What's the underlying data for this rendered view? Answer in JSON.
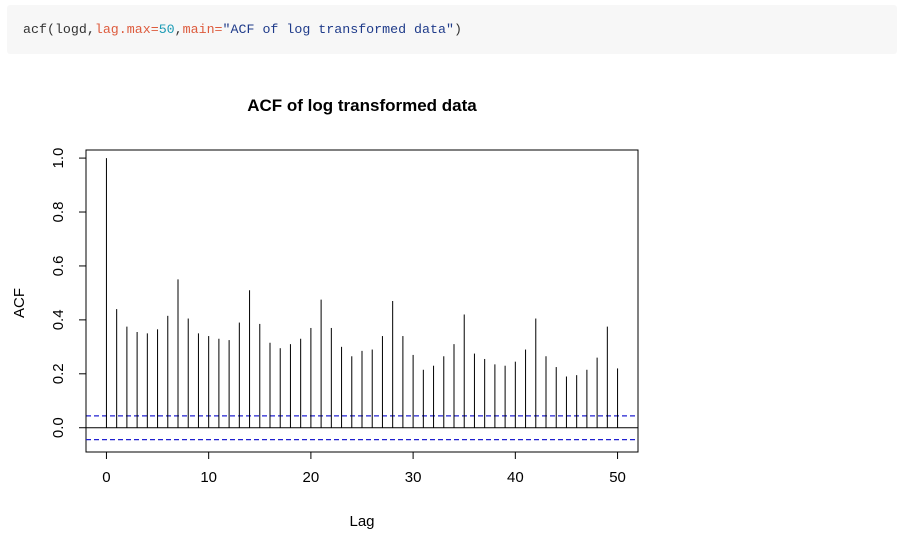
{
  "code": {
    "fn": "acf",
    "open": "(",
    "arg0": "logd,",
    "arg1_name": "lag.max=",
    "arg1_value": "50",
    "sep": ",",
    "arg2_name": "main=",
    "arg2_value": "\"ACF of log transformed data\"",
    "close": ")"
  },
  "chart_data": {
    "type": "bar",
    "title": "ACF of log transformed data",
    "xlabel": "Lag",
    "ylabel": "ACF",
    "xlim": [
      -2,
      52
    ],
    "ylim": [
      -0.09,
      1.03
    ],
    "x_ticks": [
      "0",
      "10",
      "20",
      "30",
      "40",
      "50"
    ],
    "y_ticks": [
      "0.0",
      "0.2",
      "0.4",
      "0.6",
      "0.8",
      "1.0"
    ],
    "lags": [
      0,
      1,
      2,
      3,
      4,
      5,
      6,
      7,
      8,
      9,
      10,
      11,
      12,
      13,
      14,
      15,
      16,
      17,
      18,
      19,
      20,
      21,
      22,
      23,
      24,
      25,
      26,
      27,
      28,
      29,
      30,
      31,
      32,
      33,
      34,
      35,
      36,
      37,
      38,
      39,
      40,
      41,
      42,
      43,
      44,
      45,
      46,
      47,
      48,
      49,
      50
    ],
    "values": [
      1.0,
      0.44,
      0.375,
      0.355,
      0.35,
      0.365,
      0.415,
      0.55,
      0.405,
      0.35,
      0.34,
      0.33,
      0.325,
      0.39,
      0.51,
      0.385,
      0.315,
      0.295,
      0.31,
      0.33,
      0.37,
      0.475,
      0.37,
      0.3,
      0.265,
      0.285,
      0.29,
      0.34,
      0.47,
      0.34,
      0.27,
      0.215,
      0.23,
      0.265,
      0.31,
      0.42,
      0.275,
      0.255,
      0.235,
      0.23,
      0.245,
      0.29,
      0.405,
      0.265,
      0.225,
      0.19,
      0.195,
      0.215,
      0.26,
      0.375,
      0.22
    ],
    "ci_bounds": [
      0.044,
      -0.044
    ],
    "ci_color": "#2020d0",
    "bar_color": "#000000"
  }
}
